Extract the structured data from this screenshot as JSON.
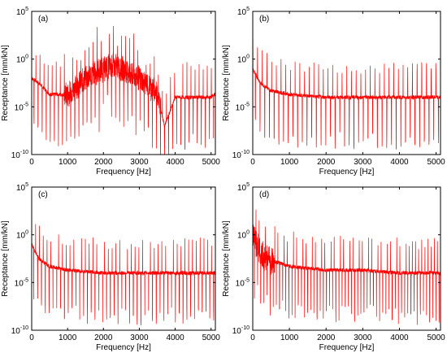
{
  "figure": {
    "xlabel": "Frequency [Hz]",
    "ylabel": "Receptance [mm/kN]",
    "line_color": "#ff0000"
  },
  "chart_data": [
    {
      "panel": "(a)",
      "type": "line",
      "xlabel": "Frequency [Hz]",
      "ylabel": "Receptance [mm/kN]",
      "xlim": [
        0,
        5120
      ],
      "ylim": [
        1e-10,
        100000.0
      ],
      "yscale": "log",
      "xticks": [
        0,
        1000,
        2000,
        3000,
        4000,
        5000
      ],
      "yticks": [
        -10,
        -5,
        0,
        5
      ],
      "grid": false,
      "series": [
        {
          "x": [
            0,
            200,
            500,
            1000,
            1500,
            2000,
            2300,
            2500,
            3000,
            3500,
            3700,
            4000,
            4500,
            5000,
            5100
          ],
          "y": [
            0.01,
            0.003,
            0.0002,
            0.0002,
            0.01,
            0.1,
            0.2,
            0.1,
            0.01,
            0.0003,
            1e-07,
            0.0001,
            0.0001,
            0.0001,
            0.0002
          ]
        }
      ]
    },
    {
      "panel": "(b)",
      "type": "line",
      "xlabel": "Frequency [Hz]",
      "ylabel": "Receptance [mm/kN]",
      "xlim": [
        0,
        5120
      ],
      "ylim": [
        1e-10,
        100000.0
      ],
      "yscale": "log",
      "xticks": [
        0,
        1000,
        2000,
        3000,
        4000,
        5000
      ],
      "yticks": [
        -10,
        -5,
        0,
        5
      ],
      "grid": false,
      "series": [
        {
          "x": [
            0,
            200,
            500,
            1000,
            2000,
            3000,
            4000,
            5000,
            5100
          ],
          "y": [
            0.1,
            0.003,
            0.0005,
            0.0002,
            0.0001,
            0.0001,
            0.0001,
            0.0001,
            0.0001
          ]
        }
      ]
    },
    {
      "panel": "(c)",
      "type": "line",
      "xlabel": "Frequency [Hz]",
      "ylabel": "Receptance [mm/kN]",
      "xlim": [
        0,
        5120
      ],
      "ylim": [
        1e-10,
        100000.0
      ],
      "yscale": "log",
      "xticks": [
        0,
        1000,
        2000,
        3000,
        4000,
        5000
      ],
      "yticks": [
        -10,
        -5,
        0,
        5
      ],
      "grid": false,
      "series": [
        {
          "x": [
            0,
            200,
            500,
            1000,
            2000,
            3000,
            4000,
            5000,
            5100
          ],
          "y": [
            0.1,
            0.003,
            0.0005,
            0.0002,
            0.0001,
            0.0001,
            0.0001,
            0.0001,
            0.0001
          ]
        }
      ]
    },
    {
      "panel": "(d)",
      "type": "line",
      "xlabel": "Frequency [Hz]",
      "ylabel": "Receptance [mm/kN]",
      "xlim": [
        0,
        5120
      ],
      "ylim": [
        1e-10,
        100000.0
      ],
      "yscale": "log",
      "xticks": [
        0,
        1000,
        2000,
        3000,
        4000,
        5000
      ],
      "yticks": [
        -10,
        -5,
        0,
        5
      ],
      "grid": false,
      "series": [
        {
          "x": [
            0,
            100,
            300,
            500,
            1000,
            2000,
            3000,
            4000,
            5000,
            5100
          ],
          "y": [
            1,
            0.1,
            0.005,
            0.002,
            0.0005,
            0.0002,
            0.0002,
            0.0001,
            0.0001,
            0.0001
          ]
        }
      ]
    }
  ]
}
